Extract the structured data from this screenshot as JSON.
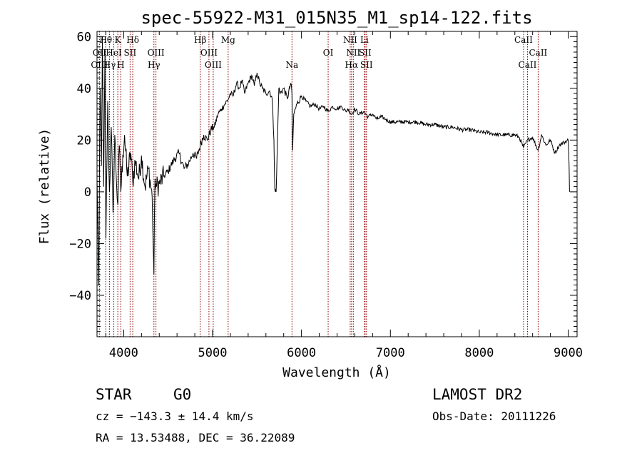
{
  "chart_data": {
    "type": "line",
    "title": "spec-55922-M31_015N35_M1_sp14-122.fits",
    "xlabel": "Wavelength (Å)",
    "ylabel": "Flux (relative)",
    "xlim": [
      3700,
      9100
    ],
    "ylim": [
      -56,
      62
    ],
    "xticks": [
      4000,
      5000,
      6000,
      7000,
      8000,
      9000
    ],
    "xtick_labels": [
      "4000",
      "5000",
      "6000",
      "7000",
      "8000",
      "9000"
    ],
    "yticks": [
      -40,
      -20,
      0,
      20,
      40,
      60
    ],
    "ytick_labels": [
      "−40",
      "−20",
      "0",
      "20",
      "40",
      "60"
    ],
    "grid": false,
    "series": [
      {
        "x": [
          3700,
          3720,
          3735,
          3750,
          3760,
          3775,
          3790,
          3800,
          3820,
          3840,
          3860,
          3880,
          3900,
          3920,
          3934,
          3950,
          3968,
          3990,
          4010,
          4040,
          4080,
          4102,
          4130,
          4170,
          4200,
          4240,
          4280,
          4320,
          4340,
          4352,
          4370,
          4400,
          4450,
          4500,
          4560,
          4620,
          4680,
          4730,
          4780,
          4820,
          4861,
          4900,
          4940,
          4980,
          5020,
          5060,
          5100,
          5140,
          5180,
          5200,
          5230,
          5270,
          5300,
          5330,
          5360,
          5400,
          5440,
          5470,
          5500,
          5530,
          5560,
          5600,
          5640,
          5670,
          5690,
          5700,
          5715,
          5730,
          5745,
          5760,
          5800,
          5840,
          5880,
          5893,
          5900,
          5913,
          5950,
          6000,
          6050,
          6100,
          6150,
          6200,
          6250,
          6300,
          6350,
          6400,
          6450,
          6500,
          6520,
          6563,
          6600,
          6650,
          6700,
          6750,
          6800,
          6850,
          6900,
          6950,
          7000,
          7100,
          7200,
          7300,
          7400,
          7500,
          7600,
          7700,
          7800,
          7900,
          8000,
          8100,
          8200,
          8300,
          8400,
          8450,
          8498,
          8542,
          8600,
          8662,
          8700,
          8750,
          8800,
          8850,
          8900,
          8950,
          9000,
          9010,
          9015
        ],
        "y": [
          5,
          -36,
          40,
          10,
          60,
          2,
          55,
          -18,
          35,
          0,
          25,
          -8,
          22,
          3,
          -5,
          18,
          0,
          14,
          22,
          6,
          15,
          4,
          12,
          5,
          14,
          2,
          9,
          -2,
          -32,
          5,
          2,
          3,
          6,
          8,
          12,
          15,
          9,
          11,
          15,
          13,
          18,
          22,
          20,
          24,
          25,
          30,
          32,
          34,
          36,
          38,
          37,
          42,
          40,
          43,
          38,
          42,
          45,
          41,
          46,
          42,
          40,
          38,
          39,
          36,
          20,
          1,
          0,
          20,
          40,
          38,
          40,
          36,
          42,
          38,
          16,
          30,
          34,
          37,
          35,
          33,
          34,
          32,
          33,
          31,
          33,
          32,
          33,
          31,
          32,
          30,
          32,
          30,
          31,
          29,
          30,
          28,
          29,
          28,
          27,
          27,
          27,
          27,
          26,
          26,
          25,
          25,
          24,
          24,
          23,
          23,
          22,
          22,
          22,
          21,
          17,
          20,
          21,
          16,
          22,
          18,
          20,
          15,
          18,
          19,
          20,
          10,
          0
        ]
      }
    ],
    "spectral_lines": [
      {
        "label": "Hθ",
        "x": 3798,
        "row": 0
      },
      {
        "label": "K",
        "x": 3934,
        "row": 0
      },
      {
        "label": "Hδ",
        "x": 4102,
        "row": 0
      },
      {
        "label": "Hβ",
        "x": 4861,
        "row": 0
      },
      {
        "label": "Mg",
        "x": 5175,
        "row": 0
      },
      {
        "label": "NII",
        "x": 6548,
        "row": 0
      },
      {
        "label": "Li",
        "x": 6708,
        "row": 0
      },
      {
        "label": "CaII",
        "x": 8498,
        "row": 0
      },
      {
        "label": "OII",
        "x": 3727,
        "row": 1
      },
      {
        "label": "HeI",
        "x": 3889,
        "row": 1
      },
      {
        "label": "SII",
        "x": 4072,
        "row": 1
      },
      {
        "label": "OIII",
        "x": 4363,
        "row": 1
      },
      {
        "label": "OIII",
        "x": 4959,
        "row": 1
      },
      {
        "label": "OI",
        "x": 6300,
        "row": 1
      },
      {
        "label": "NII",
        "x": 6583,
        "row": 1
      },
      {
        "label": "SII",
        "x": 6716,
        "row": 1
      },
      {
        "label": "CaII",
        "x": 8662,
        "row": 1
      },
      {
        "label": "OIII",
        "x": 3727,
        "row": 2
      },
      {
        "label": "Hγ",
        "x": 3840,
        "row": 2
      },
      {
        "label": "H",
        "x": 3968,
        "row": 2
      },
      {
        "label": "Hγ",
        "x": 4340,
        "row": 2
      },
      {
        "label": "OIII",
        "x": 5007,
        "row": 2
      },
      {
        "label": "Na",
        "x": 5893,
        "row": 2
      },
      {
        "label": "Hα",
        "x": 6563,
        "row": 2
      },
      {
        "label": "SII",
        "x": 6731,
        "row": 2
      },
      {
        "label": "CaII",
        "x": 8542,
        "row": 2
      }
    ],
    "line_marker_color": "#8b0000",
    "spectrum_color": "#000000"
  },
  "info": {
    "class": "STAR",
    "subclass": "G0",
    "survey": "LAMOST DR2",
    "cz": "cz = −143.3 ± 14.4 km/s",
    "obs_date": "Obs-Date: 20111226",
    "coords": "RA =  13.53488, DEC =  36.22089"
  }
}
